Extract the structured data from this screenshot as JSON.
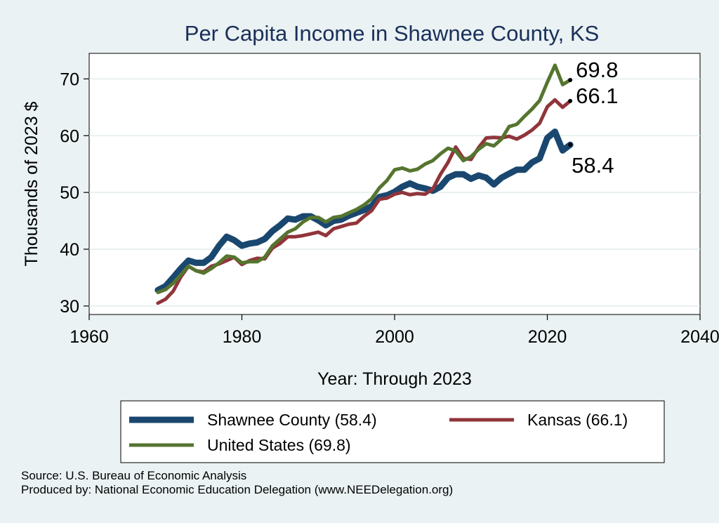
{
  "chart_data": {
    "type": "line",
    "title": "Per Capita Income in Shawnee County, KS",
    "xlabel": "Year: Through 2023",
    "ylabel": "Thousands of 2023 $",
    "xlim": [
      1960,
      2040
    ],
    "ylim": [
      28.5,
      74.5
    ],
    "xticks": [
      1960,
      1980,
      2000,
      2020,
      2040
    ],
    "yticks": [
      30,
      40,
      50,
      60,
      70
    ],
    "grid": "horizontal",
    "legend_position": "bottom",
    "x": [
      1969,
      1970,
      1971,
      1972,
      1973,
      1974,
      1975,
      1976,
      1977,
      1978,
      1979,
      1980,
      1981,
      1982,
      1983,
      1984,
      1985,
      1986,
      1987,
      1988,
      1989,
      1990,
      1991,
      1992,
      1993,
      1994,
      1995,
      1996,
      1997,
      1998,
      1999,
      2000,
      2001,
      2002,
      2003,
      2004,
      2005,
      2006,
      2007,
      2008,
      2009,
      2010,
      2011,
      2012,
      2013,
      2014,
      2015,
      2016,
      2017,
      2018,
      2019,
      2020,
      2021,
      2022,
      2023
    ],
    "series": [
      {
        "name": "Shawnee County (58.4)",
        "color": "#1a476f",
        "end_label": "58.4",
        "values": [
          32.8,
          33.5,
          35.0,
          36.6,
          38.0,
          37.6,
          37.6,
          38.6,
          40.6,
          42.2,
          41.6,
          40.6,
          41.0,
          41.2,
          41.8,
          43.2,
          44.2,
          45.4,
          45.2,
          45.8,
          45.8,
          45.1,
          44.2,
          45.0,
          45.2,
          45.9,
          46.4,
          46.9,
          47.6,
          49.2,
          49.5,
          50.1,
          51.0,
          51.6,
          51.0,
          50.7,
          50.3,
          51.0,
          52.6,
          53.2,
          53.2,
          52.4,
          53.0,
          52.6,
          51.4,
          52.6,
          53.3,
          54.0,
          54.0,
          55.3,
          56.0,
          59.6,
          60.7,
          57.4,
          58.4
        ]
      },
      {
        "name": "Kansas (66.1)",
        "color": "#90353b",
        "end_label": "66.1",
        "values": [
          30.5,
          31.2,
          32.6,
          35.1,
          37.0,
          36.2,
          36.0,
          37.0,
          37.4,
          38.0,
          38.6,
          37.3,
          38.0,
          38.4,
          38.3,
          40.2,
          41.0,
          42.2,
          42.2,
          42.4,
          42.7,
          43.0,
          42.4,
          43.6,
          44.0,
          44.4,
          44.6,
          45.8,
          46.8,
          48.8,
          49.0,
          49.7,
          50.0,
          49.6,
          49.8,
          49.7,
          50.6,
          53.2,
          55.3,
          58.0,
          56.0,
          55.8,
          57.9,
          59.6,
          59.7,
          59.6,
          59.9,
          59.4,
          60.1,
          61.0,
          62.2,
          65.1,
          66.3,
          65.0,
          66.1
        ]
      },
      {
        "name": "United States (69.8)",
        "color": "#55752f",
        "end_label": "69.8",
        "values": [
          32.4,
          32.9,
          34.0,
          35.5,
          37.0,
          36.2,
          35.8,
          36.6,
          37.6,
          38.8,
          38.6,
          37.6,
          37.8,
          37.8,
          38.6,
          40.6,
          41.8,
          43.0,
          43.6,
          44.8,
          45.6,
          45.6,
          44.8,
          45.6,
          45.8,
          46.4,
          47.0,
          47.8,
          48.9,
          50.8,
          52.1,
          54.0,
          54.3,
          53.8,
          54.1,
          55.0,
          55.6,
          56.8,
          57.8,
          57.3,
          55.6,
          56.3,
          57.6,
          58.6,
          58.2,
          59.4,
          61.6,
          62.0,
          63.4,
          64.7,
          66.2,
          69.4,
          72.4,
          69.0,
          69.8
        ]
      }
    ]
  },
  "footer": {
    "source": "Source: U.S. Bureau of Economic Analysis",
    "produced": "Produced by: National Economic Education Delegation (www.NEEDelegation.org)"
  }
}
